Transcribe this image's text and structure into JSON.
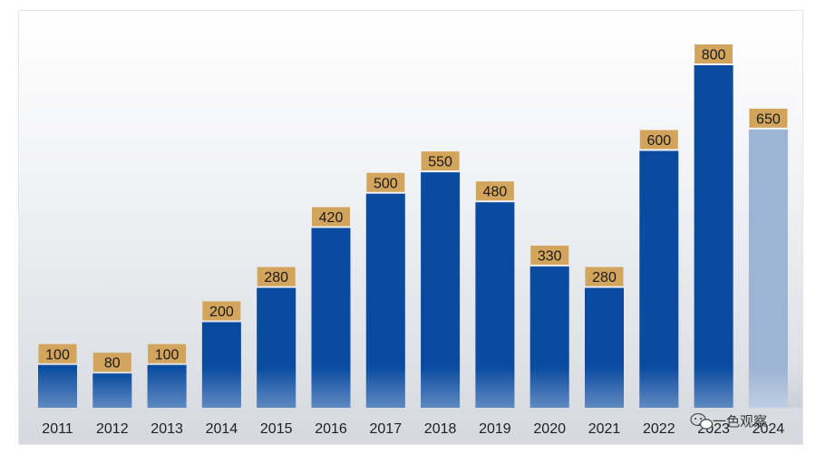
{
  "chart_data": {
    "type": "bar",
    "categories": [
      "2011",
      "2012",
      "2013",
      "2014",
      "2015",
      "2016",
      "2017",
      "2018",
      "2019",
      "2020",
      "2021",
      "2022",
      "2023",
      "2024"
    ],
    "values": [
      100,
      80,
      100,
      200,
      280,
      420,
      500,
      550,
      480,
      330,
      280,
      600,
      800,
      650
    ],
    "data_labels": [
      "100",
      "80",
      "100",
      "200",
      "280",
      "420",
      "500",
      "550",
      "480",
      "330",
      "280",
      "600",
      "800",
      "650"
    ],
    "title": "",
    "xlabel": "",
    "ylabel": "",
    "ylim": [
      0,
      800
    ],
    "grid": false,
    "legend": "none",
    "highlighted_categories": [
      "2024"
    ],
    "colors": {
      "bar": "#0a4ba0",
      "bar_highlight": "#9db4d4",
      "label_box": "#d2a45c",
      "label_text": "#1a1a1a",
      "background_top": "#ffffff",
      "background_bottom": "#d9dde3"
    }
  },
  "watermark": {
    "text": "一色观察",
    "icon": "wechat-icon"
  }
}
